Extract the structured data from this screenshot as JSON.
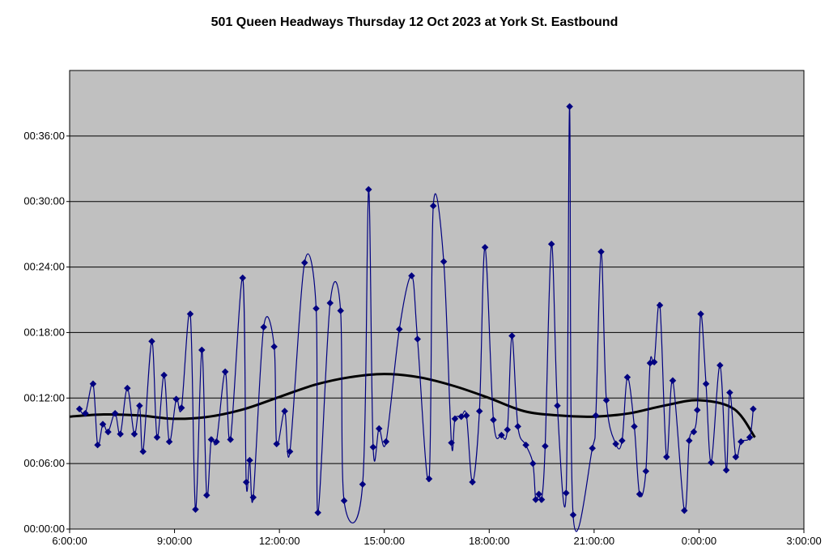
{
  "chart_data": {
    "type": "line",
    "title": "501 Queen Headways Thursday 12 Oct 2023 at York St. Eastbound",
    "xlabel": "",
    "ylabel": "",
    "x_unit": "hours since 06:00",
    "y_unit": "minutes",
    "xlim": [
      6,
      27
    ],
    "ylim": [
      0,
      42
    ],
    "x_ticks": [
      6,
      9,
      12,
      15,
      18,
      21,
      24,
      27
    ],
    "x_tick_labels": [
      "6:00:00",
      "9:00:00",
      "12:00:00",
      "15:00:00",
      "18:00:00",
      "21:00:00",
      "0:00:00",
      "3:00:00"
    ],
    "y_ticks": [
      0,
      6,
      12,
      18,
      24,
      30,
      36
    ],
    "y_tick_labels": [
      "00:00:00",
      "00:06:00",
      "00:12:00",
      "00:18:00",
      "00:24:00",
      "00:30:00",
      "00:36:00"
    ],
    "grid": "horizontal",
    "legend": "none",
    "colors": {
      "plot_background": "#c0c0c0",
      "series": "#000080",
      "trendline": "#000000"
    },
    "series": [
      {
        "x": [
          6.28,
          6.45,
          6.67,
          6.8,
          6.95,
          7.1,
          7.3,
          7.45,
          7.65,
          7.85,
          8.0,
          8.1,
          8.35,
          8.5,
          8.7,
          8.85,
          9.05,
          9.2,
          9.45,
          9.6,
          9.78,
          9.92,
          10.05,
          10.2,
          10.45,
          10.6,
          10.95,
          11.05,
          11.15,
          11.25,
          11.55,
          11.85,
          11.92,
          12.15,
          12.3,
          12.72,
          13.05,
          13.1,
          13.45,
          13.75,
          13.85,
          14.38,
          14.55,
          14.68,
          14.85,
          15.05,
          15.43,
          15.78,
          15.95,
          16.28,
          16.4,
          16.7,
          16.92,
          17.02,
          17.2,
          17.35,
          17.52,
          17.72,
          17.88,
          18.12,
          18.35,
          18.52,
          18.65,
          18.82,
          19.05,
          19.25,
          19.33,
          19.42,
          19.5,
          19.6,
          19.78,
          19.95,
          20.2,
          20.3,
          20.4,
          20.95,
          21.05,
          21.2,
          21.35,
          21.62,
          21.8,
          21.95,
          22.15,
          22.3,
          22.48,
          22.6,
          22.72,
          22.88,
          23.07,
          23.25,
          23.58,
          23.72,
          23.85,
          23.95,
          24.05,
          24.2,
          24.35,
          24.6,
          24.78,
          24.88,
          25.05,
          25.2,
          25.45,
          25.55
        ],
        "values": [
          11,
          10.6,
          13.3,
          7.7,
          9.6,
          8.9,
          10.6,
          8.7,
          12.9,
          8.7,
          11.3,
          7.1,
          17.2,
          8.4,
          14.1,
          8.0,
          11.9,
          11.1,
          19.7,
          1.8,
          16.4,
          3.1,
          8.2,
          8.0,
          14.4,
          8.2,
          23.0,
          4.3,
          6.3,
          2.9,
          18.5,
          16.7,
          7.8,
          10.8,
          7.1,
          24.4,
          20.2,
          1.5,
          20.7,
          20.0,
          2.6,
          4.1,
          31.1,
          7.5,
          9.2,
          8.0,
          18.3,
          23.2,
          17.4,
          4.6,
          29.6,
          24.5,
          7.9,
          10.1,
          10.3,
          10.4,
          4.3,
          10.8,
          25.8,
          10.0,
          8.6,
          9.1,
          17.7,
          9.4,
          7.7,
          6.0,
          2.7,
          3.2,
          2.7,
          7.6,
          26.1,
          11.3,
          3.3,
          38.7,
          1.3,
          7.4,
          10.4,
          25.4,
          11.8,
          7.8,
          8.1,
          13.9,
          9.4,
          3.2,
          5.3,
          15.2,
          15.3,
          20.5,
          6.6,
          13.6,
          1.7,
          8.1,
          8.9,
          10.9,
          19.7,
          13.3,
          6.1,
          15.0,
          5.4,
          12.5,
          6.6,
          8.0,
          8.4,
          11.0
        ]
      }
    ],
    "trendline": {
      "x": [
        6,
        7,
        8,
        9,
        10,
        11,
        12,
        13,
        14,
        15,
        16,
        17,
        18,
        19,
        20,
        21,
        22,
        23,
        24,
        25,
        25.6
      ],
      "values": [
        10.3,
        10.5,
        10.4,
        10.1,
        10.3,
        11.0,
        12.1,
        13.2,
        13.9,
        14.2,
        13.9,
        13.1,
        12.0,
        10.8,
        10.4,
        10.3,
        10.6,
        11.3,
        11.8,
        11.0,
        8.4
      ]
    }
  }
}
